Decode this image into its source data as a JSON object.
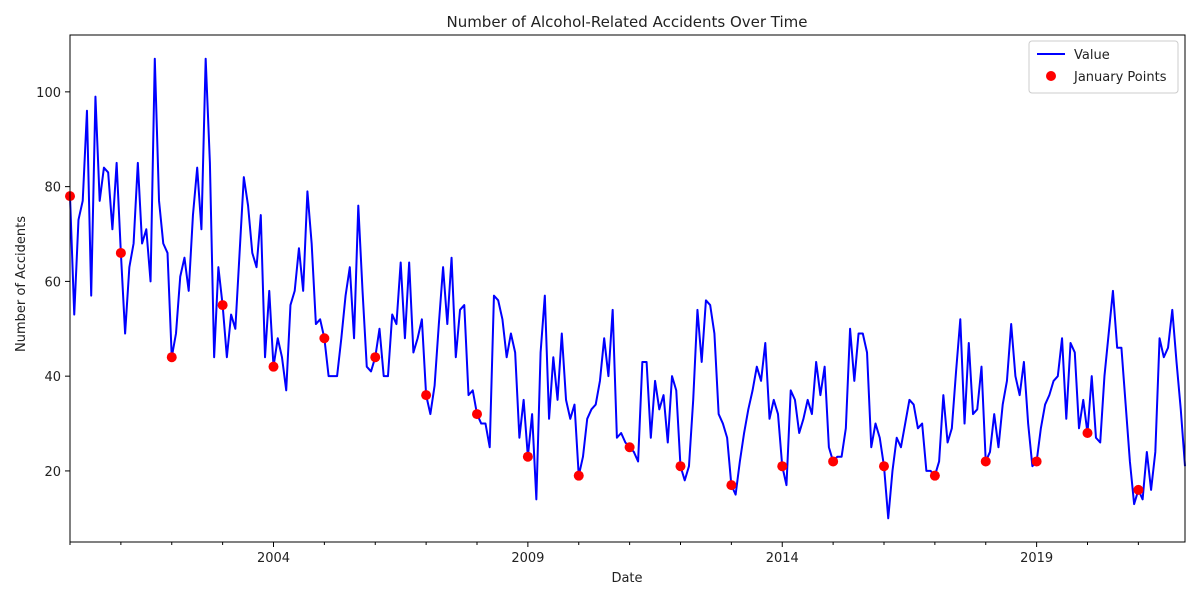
{
  "chart_data": {
    "type": "line",
    "title": "Number of Alcohol-Related Accidents Over Time",
    "xlabel": "Date",
    "ylabel": "Number of Accidents",
    "x_ticks": [
      "2004",
      "2009",
      "2014",
      "2019"
    ],
    "y_ticks": [
      20,
      40,
      60,
      80,
      100
    ],
    "xlim": [
      "2000-01",
      "2021-12"
    ],
    "ylim": [
      5,
      112
    ],
    "grid": false,
    "legend_position": "top-right",
    "colors": {
      "line": "#0000ff",
      "points": "#ff0000"
    },
    "legend": {
      "line_label": "Value",
      "points_label": "January Points"
    },
    "series": [
      {
        "name": "Value",
        "kind": "line",
        "start": "2000-01",
        "frequency": "monthly",
        "values": [
          78,
          53,
          73,
          77,
          96,
          57,
          99,
          77,
          84,
          83,
          71,
          85,
          66,
          49,
          63,
          68,
          85,
          68,
          71,
          60,
          107,
          77,
          68,
          66,
          44,
          49,
          61,
          65,
          58,
          74,
          84,
          71,
          107,
          85,
          44,
          63,
          55,
          44,
          53,
          50,
          66,
          82,
          76,
          66,
          63,
          74,
          44,
          58,
          42,
          48,
          44,
          37,
          55,
          58,
          67,
          58,
          79,
          68,
          51,
          52,
          48,
          40,
          40,
          40,
          48,
          57,
          63,
          48,
          76,
          58,
          42,
          41,
          44,
          50,
          40,
          40,
          53,
          51,
          64,
          48,
          64,
          45,
          48,
          52,
          36,
          32,
          38,
          51,
          63,
          51,
          65,
          44,
          54,
          55,
          36,
          37,
          32,
          30,
          30,
          25,
          57,
          56,
          52,
          44,
          49,
          45,
          27,
          35,
          23,
          32,
          14,
          45,
          57,
          31,
          44,
          35,
          49,
          35,
          31,
          34,
          19,
          23,
          31,
          33,
          34,
          39,
          48,
          40,
          54,
          27,
          28,
          26,
          25,
          24,
          22,
          43,
          43,
          27,
          39,
          33,
          36,
          26,
          40,
          37,
          21,
          18,
          21,
          35,
          54,
          43,
          56,
          55,
          49,
          32,
          30,
          27,
          17,
          15,
          22,
          28,
          33,
          37,
          42,
          39,
          47,
          31,
          35,
          32,
          21,
          17,
          37,
          35,
          28,
          31,
          35,
          32,
          43,
          36,
          42,
          25,
          22,
          23,
          23,
          29,
          50,
          39,
          49,
          49,
          45,
          25,
          30,
          27,
          21,
          10,
          20,
          27,
          25,
          30,
          35,
          34,
          29,
          30,
          20,
          20,
          19,
          22,
          36,
          26,
          29,
          41,
          52,
          30,
          47,
          32,
          33,
          42,
          22,
          24,
          32,
          25,
          34,
          39,
          51,
          40,
          36,
          43,
          30,
          21,
          22,
          29,
          34,
          36,
          39,
          40,
          48,
          31,
          47,
          45,
          29,
          35,
          28,
          40,
          27,
          26,
          40,
          49,
          58,
          46,
          46,
          34,
          22,
          13,
          16,
          14,
          24,
          16,
          24,
          48,
          44,
          46,
          54,
          43,
          33,
          21
        ]
      },
      {
        "name": "January Points",
        "kind": "scatter",
        "x": [
          "2000-01",
          "2001-01",
          "2002-01",
          "2003-01",
          "2004-01",
          "2005-01",
          "2006-01",
          "2007-01",
          "2008-01",
          "2009-01",
          "2010-01",
          "2011-01",
          "2012-01",
          "2013-01",
          "2014-01",
          "2015-01",
          "2016-01",
          "2017-01",
          "2018-01",
          "2019-01",
          "2020-01",
          "2021-01"
        ],
        "values": [
          78,
          66,
          44,
          55,
          42,
          48,
          44,
          36,
          32,
          23,
          19,
          25,
          21,
          17,
          21,
          22,
          21,
          19,
          22,
          22,
          28,
          16
        ]
      }
    ]
  }
}
